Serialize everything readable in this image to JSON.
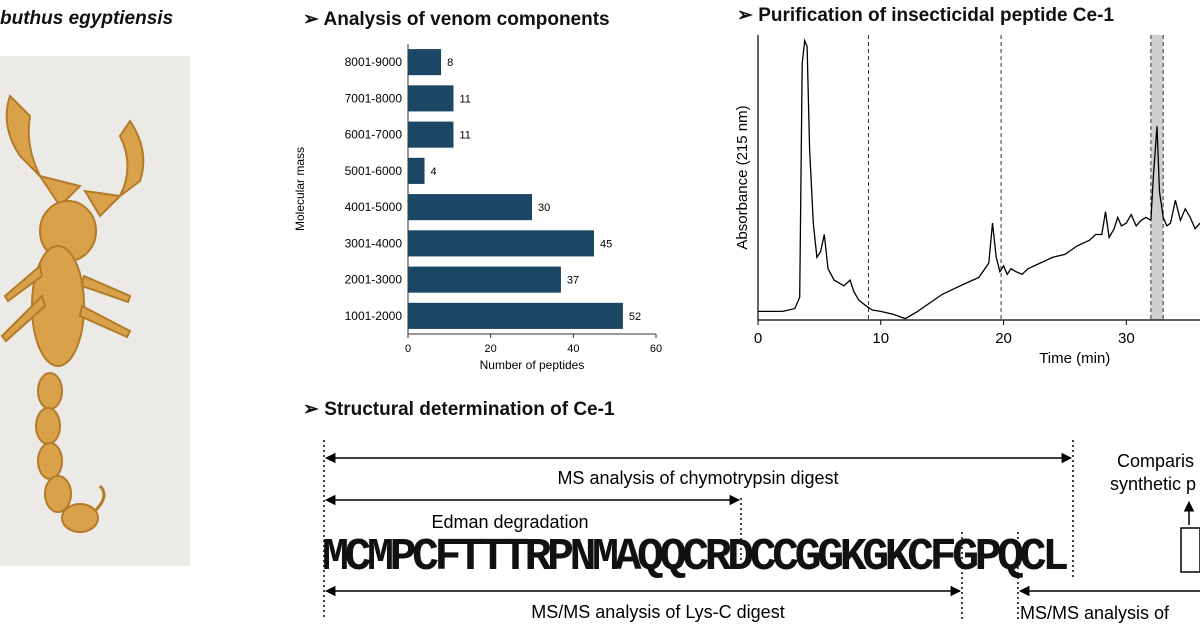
{
  "species": {
    "name": "buthus egyptiensis"
  },
  "sections": {
    "venom": "Analysis of venom components",
    "purification": "Purification of insecticidal peptide Ce-1",
    "structural": "Structural determination of Ce-1"
  },
  "bullet_glyph": "➢",
  "structural": {
    "sequence": "MCMPCFTTTRPNMAQQCRDCCGGKGKCFGPQCL",
    "chymotrypsin": "MS analysis of chymotrypsin digest",
    "edman": "Edman degradation",
    "lysc": "MS/MS analysis of Lys-C digest",
    "lysc_right": "MS/MS analysis of",
    "comparison_1": "Comparis",
    "comparison_2": "synthetic p"
  },
  "chart_data": [
    {
      "type": "bar",
      "orientation": "horizontal",
      "categories": [
        "1001-2000",
        "2001-3000",
        "3001-4000",
        "4001-5000",
        "5001-6000",
        "6001-7000",
        "7001-8000",
        "8001-9000"
      ],
      "values": [
        52,
        37,
        45,
        30,
        4,
        11,
        11,
        8
      ],
      "xlabel": "Number of peptides",
      "ylabel": "Molecular mass",
      "xlim": [
        0,
        60
      ],
      "xticks": [
        0,
        20,
        40,
        60
      ],
      "bar_color": "#1b4764"
    },
    {
      "type": "line",
      "xlabel": "Time (min)",
      "ylabel": "Absorbance (215 nm)",
      "xlim": [
        0,
        36
      ],
      "xticks": [
        0,
        10,
        20,
        30
      ],
      "dashed_lines_x": [
        9,
        19.8,
        32,
        33
      ],
      "shaded_region_x": [
        32,
        33
      ],
      "shaded_color": "#cfcfcf",
      "x": [
        0,
        2,
        3.0,
        3.4,
        3.6,
        3.8,
        4.0,
        4.2,
        4.5,
        4.8,
        5.1,
        5.4,
        5.7,
        6.2,
        7,
        7.5,
        7.8,
        8.2,
        8.8,
        9.3,
        10,
        11,
        12,
        13,
        14,
        15,
        16,
        17,
        18,
        18.8,
        19.1,
        19.4,
        19.7,
        20,
        20.3,
        20.6,
        21,
        21.5,
        22,
        23,
        24,
        25,
        26,
        27,
        27.5,
        28,
        28.3,
        28.6,
        29,
        29.3,
        29.6,
        30,
        30.4,
        30.8,
        31.2,
        31.6,
        32,
        32.2,
        32.5,
        32.7,
        33,
        33.3,
        33.6,
        34,
        34.4,
        34.8,
        35.2,
        35.6,
        36
      ],
      "y": [
        0.03,
        0.03,
        0.04,
        0.08,
        0.9,
        0.98,
        0.96,
        0.6,
        0.34,
        0.22,
        0.24,
        0.3,
        0.18,
        0.14,
        0.12,
        0.14,
        0.1,
        0.07,
        0.05,
        0.035,
        0.03,
        0.02,
        0.005,
        0.03,
        0.06,
        0.09,
        0.11,
        0.13,
        0.15,
        0.2,
        0.34,
        0.22,
        0.17,
        0.19,
        0.16,
        0.18,
        0.17,
        0.16,
        0.18,
        0.2,
        0.22,
        0.23,
        0.26,
        0.28,
        0.3,
        0.3,
        0.38,
        0.29,
        0.32,
        0.36,
        0.33,
        0.34,
        0.37,
        0.33,
        0.35,
        0.36,
        0.35,
        0.5,
        0.68,
        0.45,
        0.36,
        0.33,
        0.34,
        0.42,
        0.35,
        0.39,
        0.36,
        0.32,
        0.34
      ]
    }
  ]
}
